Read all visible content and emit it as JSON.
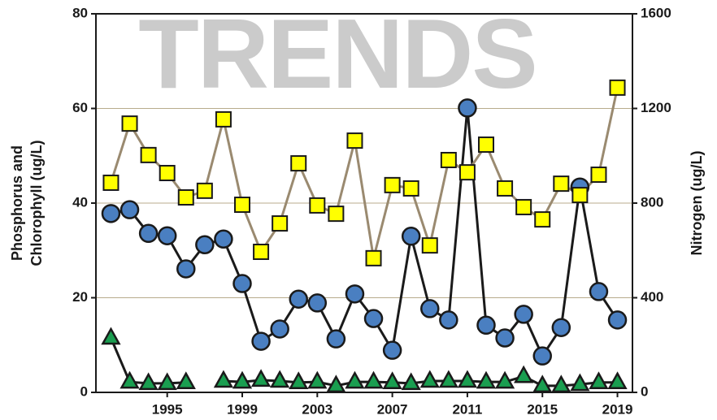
{
  "chart_data": {
    "type": "line",
    "title": "TRENDS",
    "ylabel": [
      "Phosphorus and",
      "Chlorophyll (ug/L)"
    ],
    "y2label": "Nitrogen (ug/L)",
    "x": [
      1992,
      1993,
      1994,
      1995,
      1996,
      1997,
      1998,
      1999,
      2000,
      2001,
      2002,
      2003,
      2004,
      2005,
      2006,
      2007,
      2008,
      2009,
      2010,
      2011,
      2012,
      2013,
      2014,
      2015,
      2016,
      2017,
      2018,
      2019
    ],
    "xlim": [
      1991.2,
      2019.8
    ],
    "xticks": [
      1995,
      1999,
      2003,
      2007,
      2011,
      2015,
      2019
    ],
    "ylim": [
      0,
      80
    ],
    "yticks": [
      0,
      20,
      40,
      60,
      80
    ],
    "y2lim": [
      0,
      1600
    ],
    "y2ticks": [
      0,
      400,
      800,
      1200,
      1600
    ],
    "grid": true,
    "grid_color": "#b8ab8c",
    "series": [
      {
        "color": "#4a7fc1",
        "line_color": "#1a1a1a",
        "marker": "circle",
        "values": [
          37.8,
          38.6,
          33.6,
          33.1,
          26.1,
          31.2,
          32.4,
          23.0,
          10.8,
          13.4,
          19.7,
          18.9,
          11.3,
          20.8,
          15.6,
          8.9,
          33.0,
          17.7,
          15.3,
          60.1,
          14.2,
          11.5,
          16.5,
          7.7,
          13.7,
          43.4,
          21.3,
          15.3
        ]
      },
      {
        "color": "#ffff00",
        "line_color": "#9a8a70",
        "marker": "square",
        "axis": "y2",
        "values": [
          886,
          1136,
          1003,
          927,
          824,
          852,
          1154,
          793,
          594,
          714,
          968,
          790,
          755,
          1064,
          567,
          876,
          862,
          621,
          982,
          930,
          1047,
          862,
          783,
          731,
          882,
          834,
          920,
          1288
        ]
      },
      {
        "color": "#1a9e50",
        "line_color": "#1a1a1a",
        "marker": "triangle",
        "values": [
          11.5,
          2.2,
          1.9,
          1.9,
          2.1,
          null,
          2.4,
          2.2,
          2.6,
          2.4,
          2.1,
          2.2,
          1.4,
          2.2,
          2.2,
          2.1,
          1.9,
          2.4,
          2.4,
          2.4,
          2.2,
          2.2,
          3.4,
          1.4,
          1.4,
          1.7,
          2.1,
          2.1
        ]
      }
    ]
  }
}
